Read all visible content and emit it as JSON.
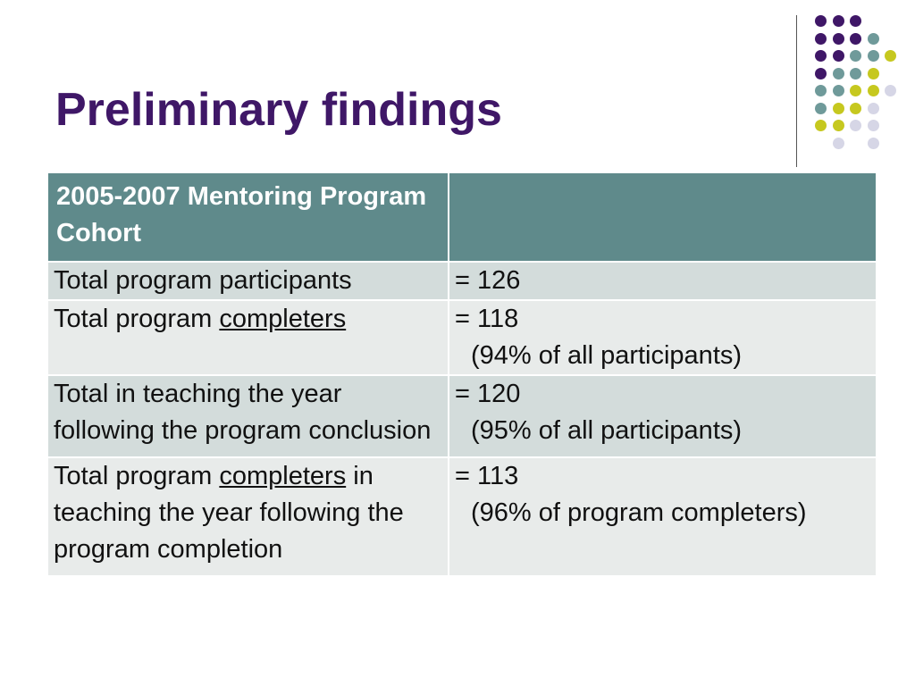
{
  "title": "Preliminary findings",
  "colors": {
    "title": "#3f1767",
    "header_bg": "#5f8a8b",
    "row_odd_bg": "#d3dcdb",
    "row_even_bg": "#e8ebea",
    "dot_purple": "#3f1767",
    "dot_teal": "#6f9a9a",
    "dot_yellow": "#c6c81f",
    "dot_lavender": "#d6d6e6"
  },
  "table": {
    "header": [
      "2005-2007 Mentoring Program Cohort",
      ""
    ],
    "rows": [
      {
        "label_pre": "Total program participants",
        "label_u": "",
        "label_post": "",
        "value": "= 126",
        "note": ""
      },
      {
        "label_pre": "Total program ",
        "label_u": "completers",
        "label_post": "",
        "value": "= 118",
        "note": "(94% of all participants)"
      },
      {
        "label_pre": "Total in teaching the year following the program conclusion",
        "label_u": "",
        "label_post": "",
        "value": "= 120",
        "note": "(95% of all participants)"
      },
      {
        "label_pre": "Total program ",
        "label_u": "completers",
        "label_post": " in teaching the year following the program completion",
        "value": "= 113",
        "note": "(96% of program completers)"
      }
    ]
  }
}
